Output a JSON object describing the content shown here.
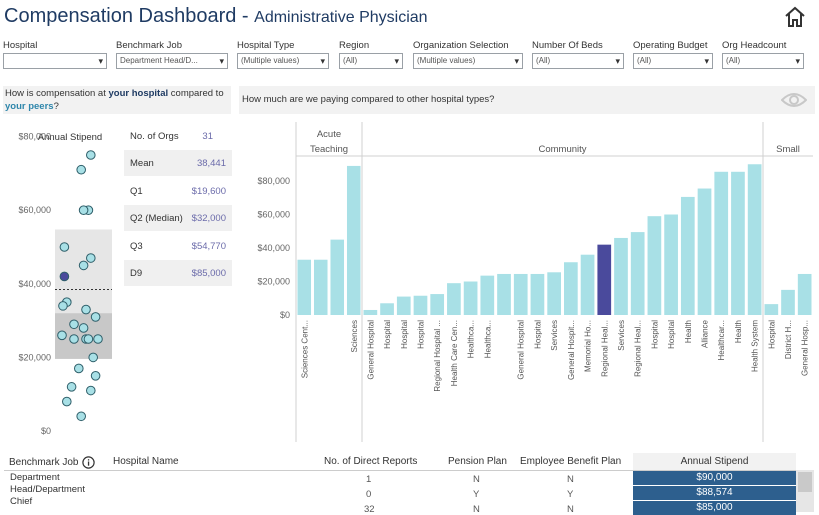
{
  "header": {
    "title": "Compensation Dashboard - ",
    "subtitle": "Administrative Physician"
  },
  "filters": [
    {
      "label": "Hospital",
      "value": ""
    },
    {
      "label": "Benchmark Job",
      "value": "Department Head/D..."
    },
    {
      "label": "Hospital Type",
      "value": "(Multiple values)"
    },
    {
      "label": "Region",
      "value": "(All)"
    },
    {
      "label": "Organization Selection",
      "value": "(Multiple values)"
    },
    {
      "label": "Number Of Beds",
      "value": "(All)"
    },
    {
      "label": "Operating Budget",
      "value": "(All)"
    },
    {
      "label": "Org Headcount",
      "value": "(All)"
    }
  ],
  "left_question": {
    "p1": "How is compensation at ",
    "h1": "your hospital",
    "p2": " compared to ",
    "h2": "your peers",
    "p3": "?"
  },
  "right_question": "How much are we paying compared to other hospital types?",
  "stats": {
    "title": "Annual Stipend",
    "rows": [
      {
        "label": "No. of Orgs",
        "value": "31"
      },
      {
        "label": "Mean",
        "value": "38,441"
      },
      {
        "label": "Q1",
        "value": "$19,600"
      },
      {
        "label": "Q2 (Median)",
        "value": "$32,000"
      },
      {
        "label": "Q3",
        "value": "$54,770"
      },
      {
        "label": "D9",
        "value": "$85,000"
      }
    ]
  },
  "chart_data": [
    {
      "type": "scatter",
      "title": "Annual Stipend",
      "ylim": [
        0,
        100000
      ],
      "y_ticks": [
        "$0",
        "$20,000",
        "$40,000",
        "$60,000",
        "$80,000"
      ],
      "y_tick_values": [
        0,
        20000,
        40000,
        60000,
        80000
      ],
      "q1": 19600,
      "median": 32000,
      "q3": 54770,
      "mean": 38441,
      "d9": 85000,
      "points": [
        {
          "x": 0.7,
          "y": 90000
        },
        {
          "x": 0.3,
          "y": 88000
        },
        {
          "x": 0.05,
          "y": 86000
        },
        {
          "x": 0.3,
          "y": 85000
        },
        {
          "x": 0.55,
          "y": 85000
        },
        {
          "x": 0.6,
          "y": 75000
        },
        {
          "x": 0.4,
          "y": 71000
        },
        {
          "x": 0.55,
          "y": 60000
        },
        {
          "x": 0.45,
          "y": 60000
        },
        {
          "x": 0.05,
          "y": 50000
        },
        {
          "x": 0.6,
          "y": 47000
        },
        {
          "x": 0.45,
          "y": 45000
        },
        {
          "x": 0.05,
          "y": 42000,
          "highlight": true
        },
        {
          "x": 0.1,
          "y": 35000
        },
        {
          "x": 0.02,
          "y": 34000
        },
        {
          "x": 0.5,
          "y": 33000
        },
        {
          "x": 0.7,
          "y": 31000
        },
        {
          "x": 0.25,
          "y": 29000
        },
        {
          "x": 0.45,
          "y": 28000
        },
        {
          "x": 0.0,
          "y": 26000
        },
        {
          "x": 0.25,
          "y": 25000
        },
        {
          "x": 0.5,
          "y": 25000
        },
        {
          "x": 0.55,
          "y": 25000
        },
        {
          "x": 0.75,
          "y": 25000
        },
        {
          "x": 0.65,
          "y": 20000
        },
        {
          "x": 0.35,
          "y": 17000
        },
        {
          "x": 0.7,
          "y": 15000
        },
        {
          "x": 0.2,
          "y": 12000
        },
        {
          "x": 0.6,
          "y": 11000
        },
        {
          "x": 0.1,
          "y": 8000
        },
        {
          "x": 0.4,
          "y": 4000
        }
      ]
    },
    {
      "type": "bar",
      "ylim": [
        0,
        96000
      ],
      "y_ticks": [
        "$0",
        "$20,000",
        "$40,000",
        "$60,000",
        "$80,000"
      ],
      "y_tick_values": [
        0,
        20000,
        40000,
        60000,
        80000
      ],
      "bar_color": "#a8e0e6",
      "highlight_color": "#4a4a9c",
      "groups": [
        {
          "name": "Acute Teaching",
          "categories": [
            "Sciences Cent...",
            "",
            "",
            "Sciences"
          ],
          "values": [
            33000,
            33000,
            45000,
            89000
          ]
        },
        {
          "name": "Community",
          "categories": [
            "General Hospital",
            "Hospital",
            "Hospital",
            "Hospital",
            "Regional Hospital ...",
            "Health Care Cen...",
            "Healthca...",
            "Healthca...",
            "",
            "General Hospital",
            "Hospital",
            "Services",
            "General Hospit...",
            "Memorial Ho...",
            "Regional Heal...",
            "Services",
            "Regional Heal...",
            "Hospital",
            "Hospital",
            "Health",
            "Alliance",
            "Healthcar...",
            "Health",
            "Health System"
          ],
          "values": [
            3000,
            7000,
            11000,
            11500,
            12500,
            19000,
            20000,
            23500,
            24500,
            24500,
            24500,
            25500,
            31500,
            36000,
            42000,
            46000,
            49500,
            59000,
            60000,
            70500,
            75500,
            85500,
            85500,
            90000
          ],
          "highlight_index": 14
        },
        {
          "name": "Small",
          "categories": [
            "Hospital",
            "District H...",
            "General Hosp..."
          ],
          "values": [
            6500,
            15000,
            24500
          ]
        }
      ]
    }
  ],
  "table": {
    "headers": [
      "Benchmark Job",
      "Hospital Name",
      "No. of Direct Reports",
      "Pension Plan",
      "Employee Benefit Plan",
      "Annual Stipend"
    ],
    "job_label": "Department Head/Department Chief",
    "rows": [
      {
        "reports": "1",
        "pension": "N",
        "benefit": "N",
        "stipend": "$90,000"
      },
      {
        "reports": "0",
        "pension": "Y",
        "benefit": "Y",
        "stipend": "$88,574"
      },
      {
        "reports": "32",
        "pension": "N",
        "benefit": "N",
        "stipend": "$85,000"
      }
    ]
  }
}
